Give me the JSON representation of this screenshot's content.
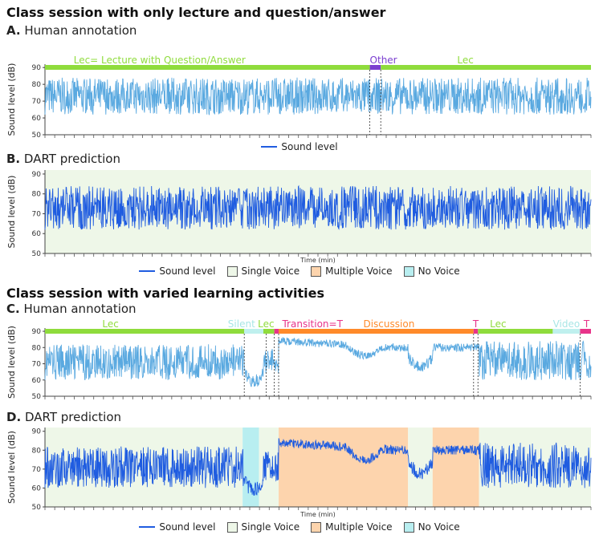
{
  "section1_title": "Class session with only lecture and question/answer",
  "section2_title": "Class session with varied learning activities",
  "colors": {
    "sound": "#5aa9e0",
    "sound_dark": "#1f5ce0",
    "lec": "#8fdc3c",
    "other": "#7b3fd0",
    "transition": "#e8348a",
    "discussion": "#ff8a2a",
    "silent": "#bff0ee",
    "single_voice": "#eef7e8",
    "multiple_voice": "#fdd4ad",
    "no_voice": "#b8eef0"
  },
  "legends": {
    "a": {
      "sound": "Sound level"
    },
    "b": {
      "sound": "Sound level",
      "single": "Single Voice",
      "multiple": "Multiple Voice",
      "none": "No Voice"
    },
    "d": {
      "sound": "Sound level",
      "single": "Single Voice",
      "multiple": "Multiple Voice",
      "none": "No Voice"
    }
  },
  "chart_data": [
    {
      "panel": "A",
      "type": "line",
      "label": "A.",
      "title": "Human annotation",
      "ylabel": "Sound level (dB)",
      "ylim": [
        50,
        92
      ],
      "yticks": [
        50,
        60,
        70,
        80,
        90
      ],
      "xlim": [
        0,
        100
      ],
      "series": [
        {
          "name": "Sound level",
          "kind": "dense_lecture",
          "base": 73,
          "amp": 11
        }
      ],
      "annotations": [
        {
          "start": 0,
          "end": 59.5,
          "color_key": "lec",
          "text": "Lec= Lecture with Question/Answer",
          "text_at": 21
        },
        {
          "start": 59.5,
          "end": 61.5,
          "color_key": "other",
          "text": "Other",
          "text_at": 62
        },
        {
          "start": 61.5,
          "end": 100,
          "color_key": "lec",
          "text": "Lec",
          "text_at": 77
        }
      ],
      "dividers": [
        59.5,
        61.5
      ]
    },
    {
      "panel": "B",
      "type": "line",
      "label": "B.",
      "title": "DART prediction",
      "ylabel": "Sound level (dB)",
      "xlabel": "Time (min)",
      "ylim": [
        50,
        92
      ],
      "yticks": [
        50,
        60,
        70,
        80,
        90
      ],
      "xlim": [
        0,
        100
      ],
      "series": [
        {
          "name": "Sound level",
          "kind": "dense_lecture",
          "base": 73,
          "amp": 11
        }
      ],
      "regions": [
        {
          "start": 0,
          "end": 100,
          "color_key": "single_voice"
        }
      ]
    },
    {
      "panel": "C",
      "type": "line",
      "label": "C.",
      "title": "Human annotation",
      "ylabel": "Sound level (dB)",
      "ylim": [
        50,
        92
      ],
      "yticks": [
        50,
        60,
        70,
        80,
        90
      ],
      "xlim": [
        0,
        100
      ],
      "series": [
        {
          "name": "Sound level",
          "kind": "varied"
        }
      ],
      "annotations": [
        {
          "start": 0,
          "end": 36.5,
          "color_key": "lec",
          "text": "Lec",
          "text_at": 12
        },
        {
          "start": 36.5,
          "end": 40,
          "color_key": "silent",
          "text": "Silent",
          "text_at": 36
        },
        {
          "start": 40,
          "end": 42,
          "color_key": "lec",
          "text": "Lec",
          "text_at": 40.5
        },
        {
          "start": 42,
          "end": 42.8,
          "color_key": "transition",
          "text": "Transition=T",
          "text_at": 49
        },
        {
          "start": 42.8,
          "end": 78.5,
          "color_key": "discussion",
          "text": "Discussion",
          "text_at": 63
        },
        {
          "start": 78.5,
          "end": 79.3,
          "color_key": "transition",
          "text": "T",
          "text_at": 78.9
        },
        {
          "start": 79.3,
          "end": 93,
          "color_key": "lec",
          "text": "Lec",
          "text_at": 83
        },
        {
          "start": 93,
          "end": 98,
          "color_key": "silent",
          "text": "Video",
          "text_at": 95.5
        },
        {
          "start": 98,
          "end": 100,
          "color_key": "transition",
          "text": "T",
          "text_at": 99.2
        }
      ],
      "dividers": [
        36.5,
        40.5,
        42,
        42.8,
        78.5,
        79.3,
        98
      ]
    },
    {
      "panel": "D",
      "type": "line",
      "label": "D.",
      "title": "DART prediction",
      "ylabel": "Sound level (dB)",
      "xlabel": "Time (min)",
      "ylim": [
        50,
        92
      ],
      "yticks": [
        50,
        60,
        70,
        80,
        90
      ],
      "xlim": [
        0,
        100
      ],
      "series": [
        {
          "name": "Sound level",
          "kind": "varied"
        }
      ],
      "regions": [
        {
          "start": 0,
          "end": 36.2,
          "color_key": "single_voice"
        },
        {
          "start": 36.2,
          "end": 39.2,
          "color_key": "no_voice"
        },
        {
          "start": 39.2,
          "end": 42.8,
          "color_key": "single_voice"
        },
        {
          "start": 42.8,
          "end": 66.5,
          "color_key": "multiple_voice"
        },
        {
          "start": 66.5,
          "end": 71,
          "color_key": "single_voice"
        },
        {
          "start": 71,
          "end": 79.5,
          "color_key": "multiple_voice"
        },
        {
          "start": 79.5,
          "end": 100,
          "color_key": "single_voice"
        }
      ]
    }
  ]
}
